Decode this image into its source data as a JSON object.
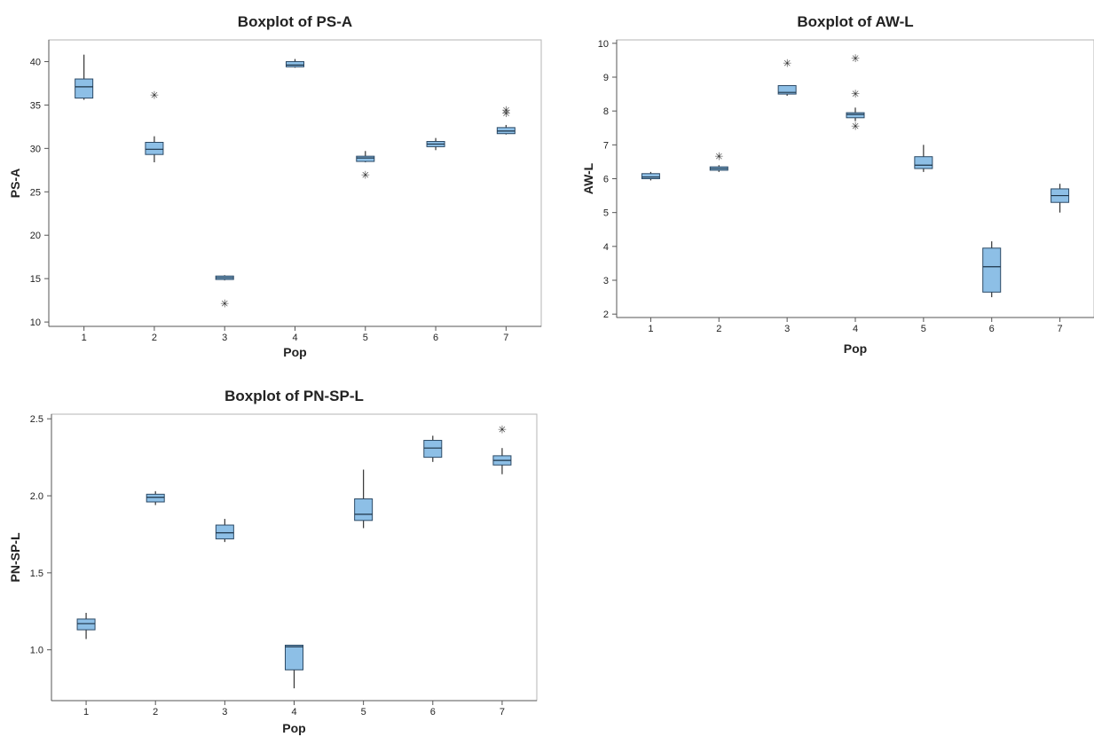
{
  "chart_data": [
    {
      "type": "boxplot",
      "title": "Boxplot of PS-A",
      "xlabel": "Pop",
      "ylabel": "PS-A",
      "categories": [
        "1",
        "2",
        "3",
        "4",
        "5",
        "6",
        "7"
      ],
      "yticks": [
        10,
        15,
        20,
        25,
        30,
        35,
        40
      ],
      "ylim": [
        9.5,
        42.5
      ],
      "boxes": [
        {
          "min": 35.6,
          "q1": 35.8,
          "median": 37.1,
          "q3": 38.0,
          "max": 40.8,
          "outliers": []
        },
        {
          "min": 28.4,
          "q1": 29.3,
          "median": 29.9,
          "q3": 30.7,
          "max": 31.4,
          "outliers": [
            36.1
          ]
        },
        {
          "min": 14.8,
          "q1": 14.9,
          "median": 15.1,
          "q3": 15.3,
          "max": 15.4,
          "outliers": [
            12.1
          ]
        },
        {
          "min": 39.3,
          "q1": 39.4,
          "median": 39.6,
          "q3": 40.0,
          "max": 40.3,
          "outliers": []
        },
        {
          "min": 28.4,
          "q1": 28.5,
          "median": 28.9,
          "q3": 29.1,
          "max": 29.7,
          "outliers": [
            26.9
          ]
        },
        {
          "min": 29.8,
          "q1": 30.2,
          "median": 30.5,
          "q3": 30.8,
          "max": 31.2,
          "outliers": []
        },
        {
          "min": 31.6,
          "q1": 31.7,
          "median": 32.0,
          "q3": 32.4,
          "max": 32.7,
          "outliers": [
            34.0,
            34.4
          ]
        }
      ]
    },
    {
      "type": "boxplot",
      "title": "Boxplot of AW-L",
      "xlabel": "Pop",
      "ylabel": "AW-L",
      "categories": [
        "1",
        "2",
        "3",
        "4",
        "5",
        "6",
        "7"
      ],
      "yticks": [
        2,
        3,
        4,
        5,
        6,
        7,
        8,
        9,
        10
      ],
      "ylim": [
        1.9,
        10.1
      ],
      "boxes": [
        {
          "min": 5.95,
          "q1": 6.0,
          "median": 6.05,
          "q3": 6.15,
          "max": 6.2,
          "outliers": []
        },
        {
          "min": 6.2,
          "q1": 6.25,
          "median": 6.3,
          "q3": 6.35,
          "max": 6.4,
          "outliers": [
            6.65
          ]
        },
        {
          "min": 8.45,
          "q1": 8.5,
          "median": 8.55,
          "q3": 8.75,
          "max": 8.75,
          "outliers": [
            9.4
          ]
        },
        {
          "min": 7.7,
          "q1": 7.8,
          "median": 7.9,
          "q3": 7.95,
          "max": 8.1,
          "outliers": [
            9.55,
            8.5,
            7.55
          ]
        },
        {
          "min": 6.2,
          "q1": 6.3,
          "median": 6.4,
          "q3": 6.65,
          "max": 7.0,
          "outliers": []
        },
        {
          "min": 2.5,
          "q1": 2.65,
          "median": 3.4,
          "q3": 3.95,
          "max": 4.15,
          "outliers": []
        },
        {
          "min": 5.0,
          "q1": 5.3,
          "median": 5.5,
          "q3": 5.7,
          "max": 5.85,
          "outliers": []
        }
      ]
    },
    {
      "type": "boxplot",
      "title": "Boxplot of PN-SP-L",
      "xlabel": "Pop",
      "ylabel": "PN-SP-L",
      "categories": [
        "1",
        "2",
        "3",
        "4",
        "5",
        "6",
        "7"
      ],
      "yticks": [
        1.0,
        1.5,
        2.0,
        2.5
      ],
      "yticklabels": [
        "1.0",
        "1.5",
        "2.0",
        "2.5"
      ],
      "ylim": [
        0.67,
        2.53
      ],
      "boxes": [
        {
          "min": 1.07,
          "q1": 1.13,
          "median": 1.17,
          "q3": 1.2,
          "max": 1.24,
          "outliers": []
        },
        {
          "min": 1.94,
          "q1": 1.96,
          "median": 1.99,
          "q3": 2.01,
          "max": 2.03,
          "outliers": []
        },
        {
          "min": 1.7,
          "q1": 1.72,
          "median": 1.76,
          "q3": 1.81,
          "max": 1.85,
          "outliers": []
        },
        {
          "min": 0.75,
          "q1": 0.87,
          "median": 1.02,
          "q3": 1.03,
          "max": 1.03,
          "outliers": []
        },
        {
          "min": 1.79,
          "q1": 1.84,
          "median": 1.88,
          "q3": 1.98,
          "max": 2.17,
          "outliers": []
        },
        {
          "min": 2.22,
          "q1": 2.25,
          "median": 2.31,
          "q3": 2.36,
          "max": 2.39,
          "outliers": []
        },
        {
          "min": 2.14,
          "q1": 2.2,
          "median": 2.23,
          "q3": 2.26,
          "max": 2.31,
          "outliers": [
            2.43
          ]
        }
      ]
    }
  ],
  "colors": {
    "box_fill": "#8dbfe6",
    "box_stroke": "#2c4a66",
    "frame": "#b5b5b5"
  },
  "outlier_symbol": "✳"
}
